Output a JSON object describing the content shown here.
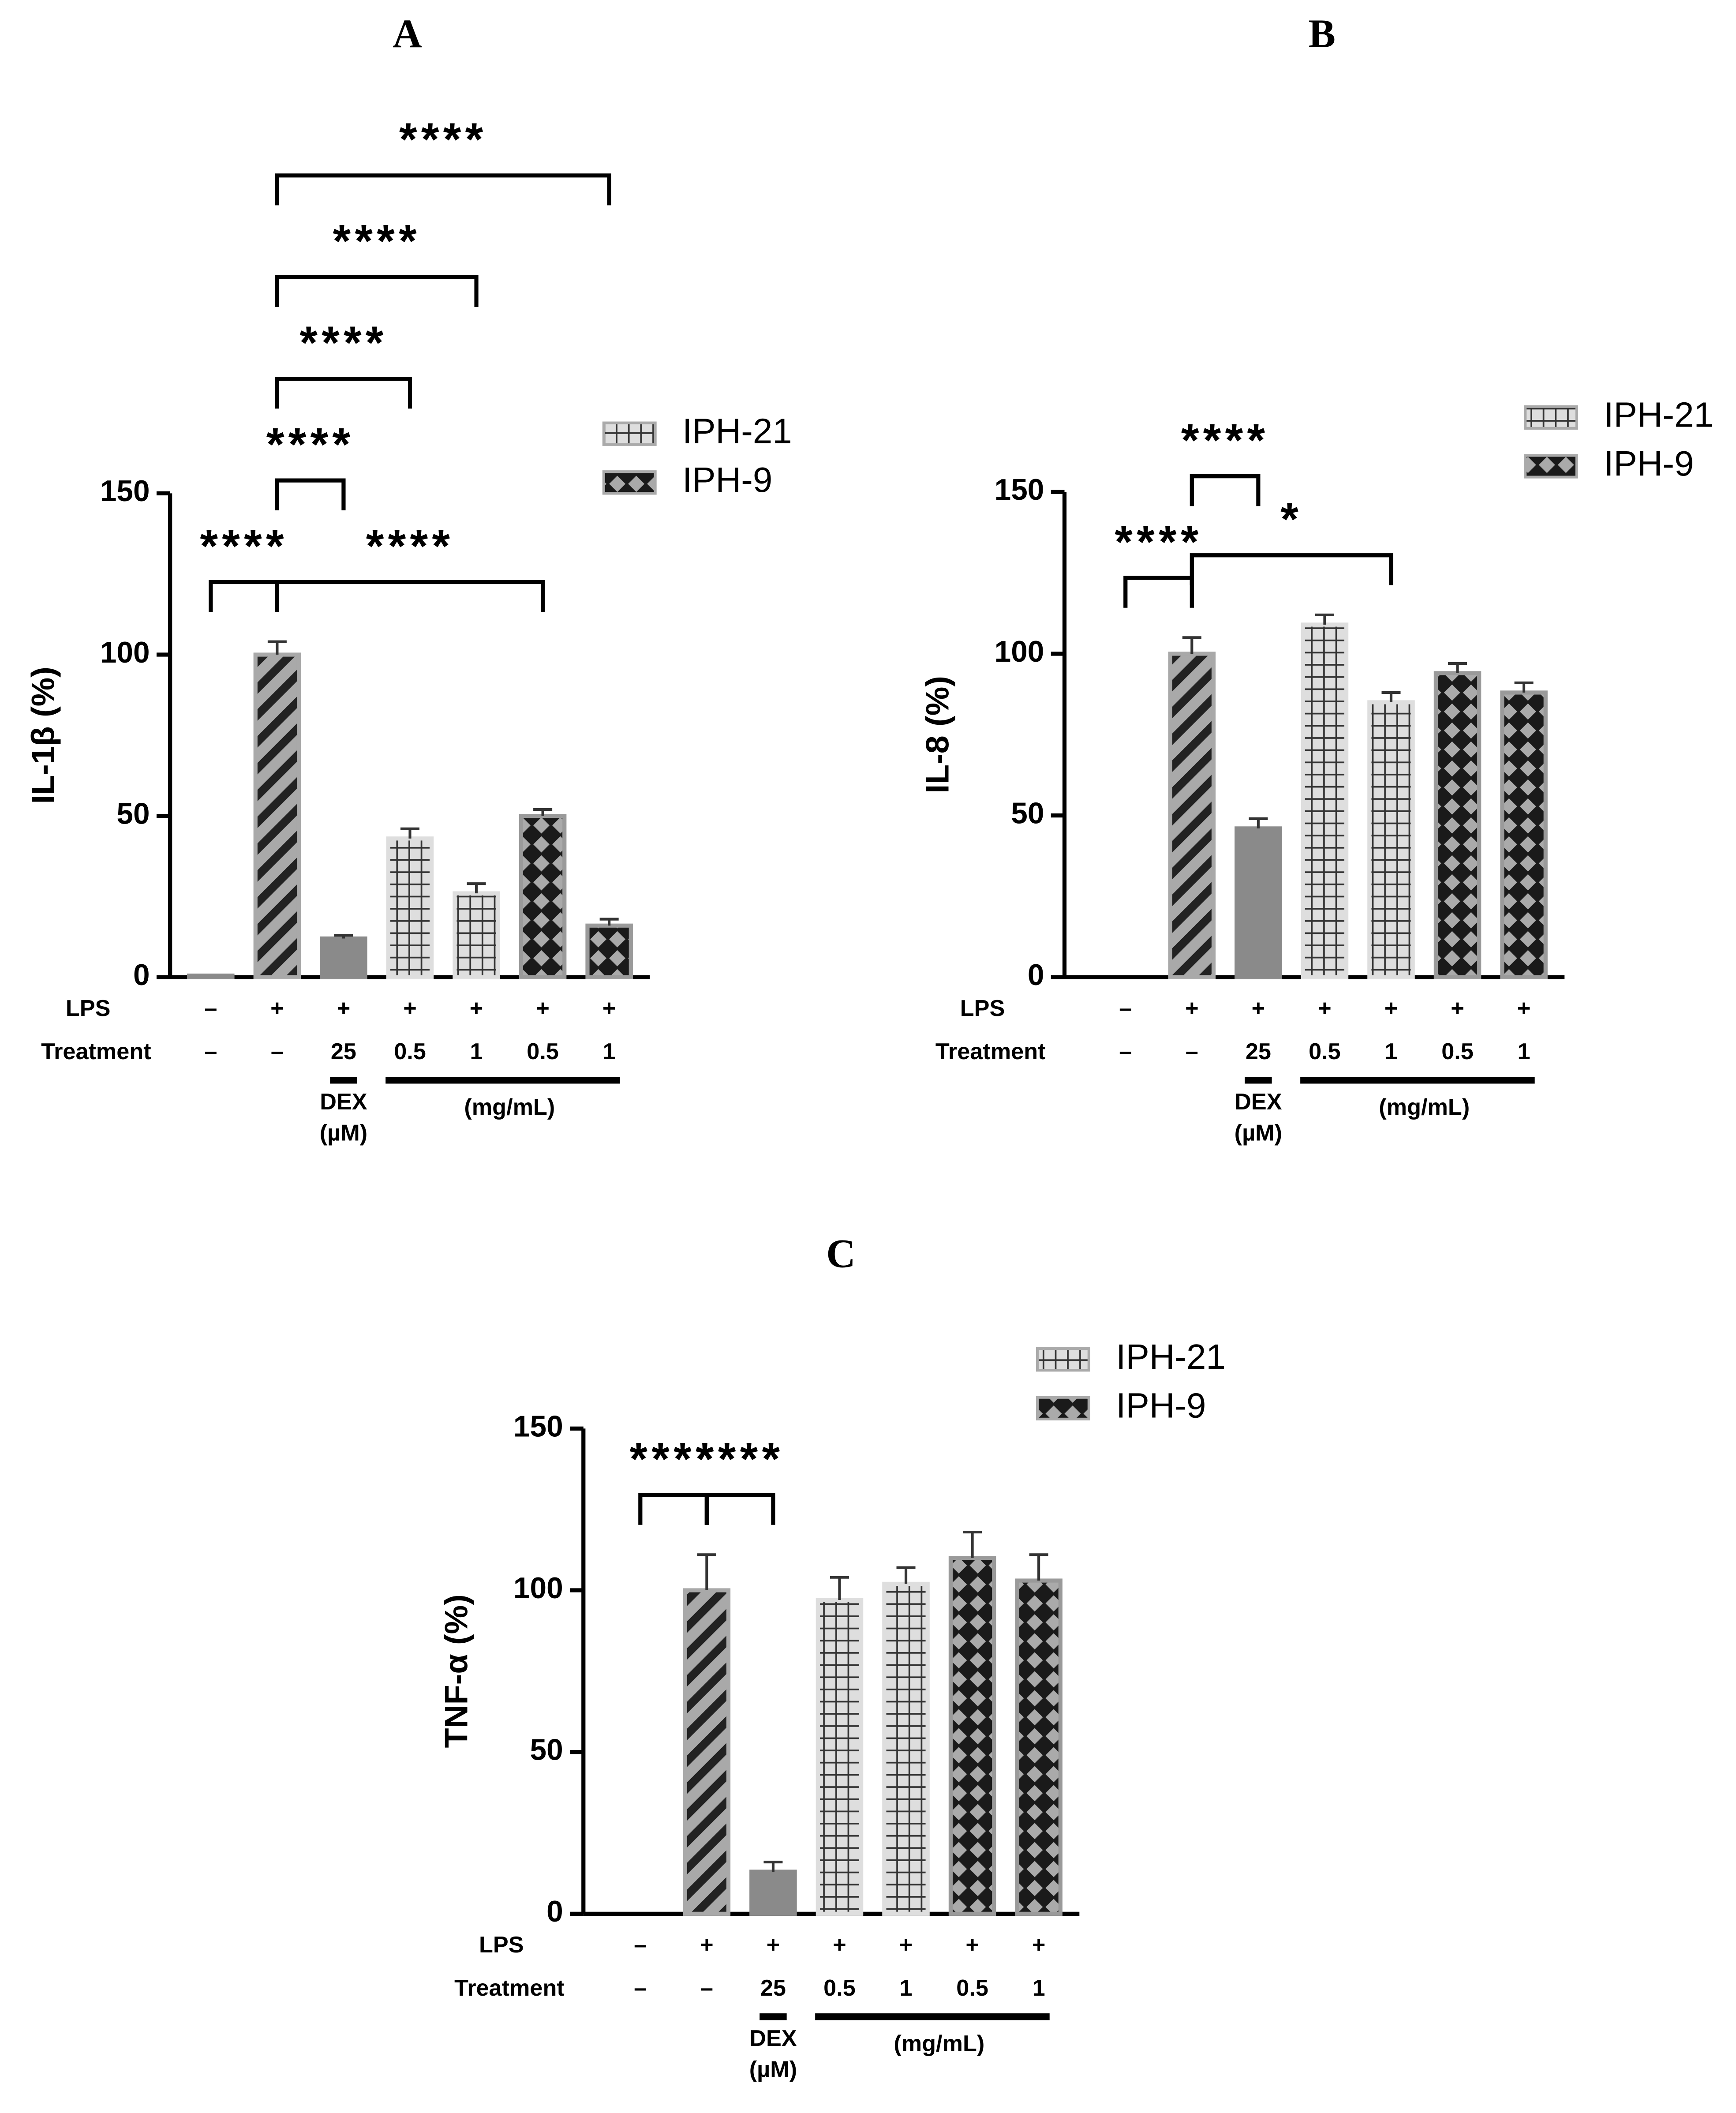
{
  "chart_data": [
    {
      "type": "bar",
      "title": "A",
      "ylabel": "IL-1β (%)",
      "row_names": [
        "LPS",
        "Treatment"
      ],
      "lps": [
        "–",
        "+",
        "+",
        "+",
        "+",
        "+",
        "+"
      ],
      "treatment": [
        "–",
        "–",
        "25",
        "0.5",
        "1",
        "0.5",
        "1"
      ],
      "dex_label": [
        "DEX",
        "(µM)"
      ],
      "unit_label": "(mg/mL)",
      "values": [
        0.5,
        100,
        12,
        43,
        26,
        50,
        16
      ],
      "errors": [
        0,
        4,
        1,
        3,
        3,
        2,
        2
      ],
      "patterns": [
        "solid",
        "diagonal",
        "solid",
        "grid",
        "grid",
        "cross",
        "cross"
      ],
      "colors": [
        "#8a8a8a",
        "#a9a9a9",
        "#8a8a8a",
        "#dedede",
        "#dedede",
        "#9a9a9a",
        "#9a9a9a"
      ],
      "legend": [
        {
          "name": "IPH-21",
          "pattern": "grid"
        },
        {
          "name": "IPH-9",
          "pattern": "cross"
        }
      ],
      "brackets": [
        {
          "from": 0,
          "to": 1,
          "label": "****"
        },
        {
          "from": 1,
          "to": 5,
          "label": "****"
        },
        {
          "from": 1,
          "to": 2,
          "label": "****"
        },
        {
          "from": 1,
          "to": 3,
          "label": "****"
        },
        {
          "from": 1,
          "to": 4,
          "label": "****"
        },
        {
          "from": 1,
          "to": 6,
          "label": "****"
        }
      ],
      "ylim": [
        0,
        150
      ],
      "yticks": [
        0,
        50,
        100,
        150
      ]
    },
    {
      "type": "bar",
      "title": "B",
      "ylabel": "IL-8 (%)",
      "row_names": [
        "LPS",
        "Treatment"
      ],
      "lps": [
        "–",
        "+",
        "+",
        "+",
        "+",
        "+",
        "+"
      ],
      "treatment": [
        "–",
        "–",
        "25",
        "0.5",
        "1",
        "0.5",
        "1"
      ],
      "dex_label": [
        "DEX",
        "(µM)"
      ],
      "unit_label": "(mg/mL)",
      "values": [
        0,
        100,
        46,
        109,
        85,
        94,
        88
      ],
      "errors": [
        0,
        5,
        3,
        3,
        3,
        3,
        3
      ],
      "patterns": [
        "solid",
        "diagonal",
        "solid",
        "grid",
        "grid",
        "cross",
        "cross"
      ],
      "colors": [
        "#8a8a8a",
        "#a9a9a9",
        "#8a8a8a",
        "#dedede",
        "#dedede",
        "#9a9a9a",
        "#9a9a9a"
      ],
      "legend": [
        {
          "name": "IPH-21",
          "pattern": "grid"
        },
        {
          "name": "IPH-9",
          "pattern": "cross"
        }
      ],
      "brackets": [
        {
          "from": 0,
          "to": 1,
          "label": "****"
        },
        {
          "from": 1,
          "to": 4,
          "label": "*"
        },
        {
          "from": 1,
          "to": 2,
          "label": "****"
        }
      ],
      "ylim": [
        0,
        150
      ],
      "yticks": [
        0,
        50,
        100,
        150
      ]
    },
    {
      "type": "bar",
      "title": "C",
      "ylabel": "TNF-α (%)",
      "row_names": [
        "LPS",
        "Treatment"
      ],
      "lps": [
        "–",
        "+",
        "+",
        "+",
        "+",
        "+",
        "+"
      ],
      "treatment": [
        "–",
        "–",
        "25",
        "0.5",
        "1",
        "0.5",
        "1"
      ],
      "dex_label": [
        "DEX",
        "(µM)"
      ],
      "unit_label": "(mg/mL)",
      "values": [
        0,
        100,
        13,
        97,
        102,
        110,
        103
      ],
      "errors": [
        0,
        11,
        3,
        7,
        5,
        8,
        8
      ],
      "patterns": [
        "solid",
        "diagonal",
        "solid",
        "grid",
        "grid",
        "cross",
        "cross"
      ],
      "colors": [
        "#8a8a8a",
        "#a9a9a9",
        "#8a8a8a",
        "#dedede",
        "#dedede",
        "#9a9a9a",
        "#9a9a9a"
      ],
      "legend": [
        {
          "name": "IPH-21",
          "pattern": "grid"
        },
        {
          "name": "IPH-9",
          "pattern": "cross"
        }
      ],
      "brackets": [
        {
          "from": 0,
          "to": 1,
          "label": "****"
        },
        {
          "from": 1,
          "to": 2,
          "label": "****"
        }
      ],
      "ylim": [
        0,
        150
      ],
      "yticks": [
        0,
        50,
        100,
        150
      ]
    }
  ]
}
